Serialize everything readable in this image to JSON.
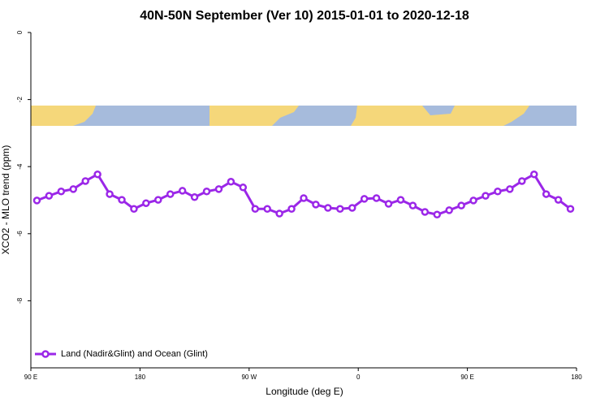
{
  "chart_data": {
    "type": "line",
    "title": "40N-50N September (Ver 10)   2015-01-01 to 2020-12-18",
    "x_label": "Longitude (deg E)",
    "y_label": "XCO2 - MLO trend (ppm)",
    "xlim": [
      90,
      540
    ],
    "xticks": [
      {
        "value": 90,
        "label": "90 E"
      },
      {
        "value": 180,
        "label": "180"
      },
      {
        "value": 270,
        "label": "90 W"
      },
      {
        "value": 360,
        "label": "0"
      },
      {
        "value": 450,
        "label": "90 E"
      },
      {
        "value": 540,
        "label": "180"
      }
    ],
    "ylim": [
      -10,
      0
    ],
    "yticks": [
      0,
      -2,
      -4,
      -6,
      -8
    ],
    "legend": "bottom-left",
    "series": [
      {
        "name": "Land (Nadir&Glint) and Ocean (Glint)",
        "color": "#9b27e8",
        "x": [
          95,
          105,
          115,
          125,
          135,
          145,
          155,
          165,
          175,
          185,
          195,
          205,
          215,
          225,
          235,
          245,
          255,
          265,
          275,
          285,
          295,
          305,
          315,
          325,
          335,
          345,
          355,
          365,
          375,
          385,
          395,
          405,
          415,
          425,
          435,
          445,
          455,
          465,
          475,
          485,
          495,
          505,
          515,
          525,
          535
        ],
        "values": [
          -5.01,
          -4.87,
          -4.74,
          -4.67,
          -4.43,
          -4.23,
          -4.82,
          -4.99,
          -5.26,
          -5.09,
          -4.99,
          -4.82,
          -4.72,
          -4.91,
          -4.74,
          -4.67,
          -4.45,
          -4.62,
          -5.26,
          -5.26,
          -5.4,
          -5.26,
          -4.94,
          -5.13,
          -5.23,
          -5.26,
          -5.23,
          -4.96,
          -4.94,
          -5.11,
          -4.99,
          -5.16,
          -5.35,
          -5.43,
          -5.3,
          -5.16,
          -5.01,
          -4.87,
          -4.74,
          -4.67,
          -4.43,
          -4.23,
          -4.82,
          -4.99,
          -5.26
        ]
      }
    ]
  }
}
